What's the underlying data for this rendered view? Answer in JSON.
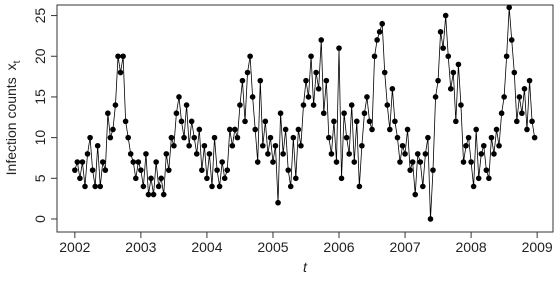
{
  "chart_data": {
    "type": "line",
    "x_label": "t",
    "y_label": "Infection counts",
    "y_label_var": "x",
    "y_label_sub": "t",
    "color": "#000000",
    "xlim": [
      2001.73,
      2009.24
    ],
    "ylim": [
      -1.6,
      26.3
    ],
    "xticks": [
      2002,
      2003,
      2004,
      2005,
      2006,
      2007,
      2008,
      2009
    ],
    "yticks": [
      0,
      5,
      10,
      15,
      20,
      25
    ],
    "x": [
      2002,
      2002.038,
      2002.077,
      2002.115,
      2002.154,
      2002.192,
      2002.231,
      2002.269,
      2002.308,
      2002.346,
      2002.385,
      2002.423,
      2002.462,
      2002.5,
      2002.538,
      2002.577,
      2002.615,
      2002.654,
      2002.692,
      2002.731,
      2002.769,
      2002.808,
      2002.846,
      2002.885,
      2002.923,
      2002.962,
      2003,
      2003.038,
      2003.077,
      2003.115,
      2003.154,
      2003.192,
      2003.231,
      2003.269,
      2003.308,
      2003.346,
      2003.385,
      2003.423,
      2003.462,
      2003.5,
      2003.538,
      2003.577,
      2003.615,
      2003.654,
      2003.692,
      2003.731,
      2003.769,
      2003.808,
      2003.846,
      2003.885,
      2003.923,
      2003.962,
      2004,
      2004.038,
      2004.077,
      2004.115,
      2004.154,
      2004.192,
      2004.231,
      2004.269,
      2004.308,
      2004.346,
      2004.385,
      2004.423,
      2004.462,
      2004.5,
      2004.538,
      2004.577,
      2004.615,
      2004.654,
      2004.692,
      2004.731,
      2004.769,
      2004.808,
      2004.846,
      2004.885,
      2004.923,
      2004.962,
      2005,
      2005.038,
      2005.077,
      2005.115,
      2005.154,
      2005.192,
      2005.231,
      2005.269,
      2005.308,
      2005.346,
      2005.385,
      2005.423,
      2005.462,
      2005.5,
      2005.538,
      2005.577,
      2005.615,
      2005.654,
      2005.692,
      2005.731,
      2005.769,
      2005.808,
      2005.846,
      2005.885,
      2005.923,
      2005.962,
      2006,
      2006.038,
      2006.077,
      2006.115,
      2006.154,
      2006.192,
      2006.231,
      2006.269,
      2006.308,
      2006.346,
      2006.385,
      2006.423,
      2006.462,
      2006.5,
      2006.538,
      2006.577,
      2006.615,
      2006.654,
      2006.692,
      2006.731,
      2006.769,
      2006.808,
      2006.846,
      2006.885,
      2006.923,
      2006.962,
      2007,
      2007.038,
      2007.077,
      2007.115,
      2007.154,
      2007.192,
      2007.231,
      2007.269,
      2007.308,
      2007.346,
      2007.385,
      2007.423,
      2007.462,
      2007.5,
      2007.538,
      2007.577,
      2007.615,
      2007.654,
      2007.692,
      2007.731,
      2007.769,
      2007.808,
      2007.846,
      2007.885,
      2007.923,
      2007.962,
      2008,
      2008.038,
      2008.077,
      2008.115,
      2008.154,
      2008.192,
      2008.231,
      2008.269,
      2008.308,
      2008.346,
      2008.385,
      2008.423,
      2008.462,
      2008.5,
      2008.538,
      2008.577,
      2008.615,
      2008.654,
      2008.692,
      2008.731,
      2008.769,
      2008.808,
      2008.846,
      2008.885,
      2008.923,
      2008.962
    ],
    "values": [
      6,
      7,
      5,
      7,
      4,
      8,
      10,
      6,
      4,
      9,
      4,
      7,
      6,
      13,
      10,
      11,
      14,
      20,
      18,
      20,
      12,
      10,
      8,
      7,
      5,
      7,
      6,
      4,
      8,
      3,
      5,
      3,
      7,
      4,
      5,
      3,
      8,
      6,
      10,
      9,
      13,
      15,
      12,
      10,
      14,
      9,
      12,
      10,
      8,
      11,
      6,
      9,
      5,
      8,
      4,
      10,
      6,
      4,
      7,
      5,
      6,
      11,
      9,
      11,
      10,
      14,
      17,
      12,
      18,
      20,
      15,
      11,
      7,
      17,
      9,
      12,
      8,
      10,
      7,
      9,
      2,
      13,
      8,
      11,
      6,
      4,
      10,
      5,
      11,
      9,
      14,
      17,
      15,
      20,
      14,
      18,
      16,
      22,
      13,
      17,
      10,
      8,
      12,
      7,
      21,
      5,
      13,
      10,
      8,
      14,
      7,
      12,
      4,
      9,
      13,
      15,
      12,
      11,
      20,
      22,
      23,
      24,
      18,
      14,
      11,
      16,
      12,
      10,
      7,
      9,
      8,
      11,
      6,
      7,
      3,
      8,
      7,
      4,
      8,
      10,
      0,
      6,
      15,
      17,
      23,
      21,
      25,
      20,
      16,
      18,
      12,
      19,
      14,
      7,
      9,
      10,
      7,
      4,
      11,
      5,
      8,
      9,
      6,
      5,
      10,
      8,
      11,
      9,
      13,
      15,
      20,
      26,
      22,
      18,
      12,
      15,
      13,
      16,
      11,
      17,
      12,
      10
    ]
  }
}
